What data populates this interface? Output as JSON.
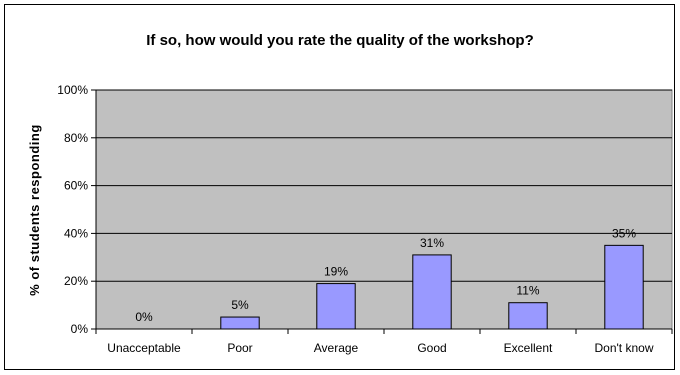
{
  "chart_data": {
    "type": "bar",
    "title": "If so, how would you rate the quality of the workshop?",
    "xlabel": "",
    "ylabel": "% of students responding",
    "categories": [
      "Unacceptable",
      "Poor",
      "Average",
      "Good",
      "Excellent",
      "Don't know"
    ],
    "values": [
      0,
      5,
      19,
      31,
      11,
      35
    ],
    "data_labels": [
      "0%",
      "5%",
      "19%",
      "31%",
      "11%",
      "35%"
    ],
    "ylim": [
      0,
      100
    ],
    "y_ticks": [
      0,
      20,
      40,
      60,
      80,
      100
    ],
    "y_tick_labels": [
      "0%",
      "20%",
      "40%",
      "60%",
      "80%",
      "100%"
    ],
    "grid": true,
    "legend": "none",
    "colors": {
      "bar_fill": "#9999ff",
      "bar_stroke": "#000000",
      "plot_background": "#c0c0c0",
      "gridline": "#000000"
    }
  }
}
